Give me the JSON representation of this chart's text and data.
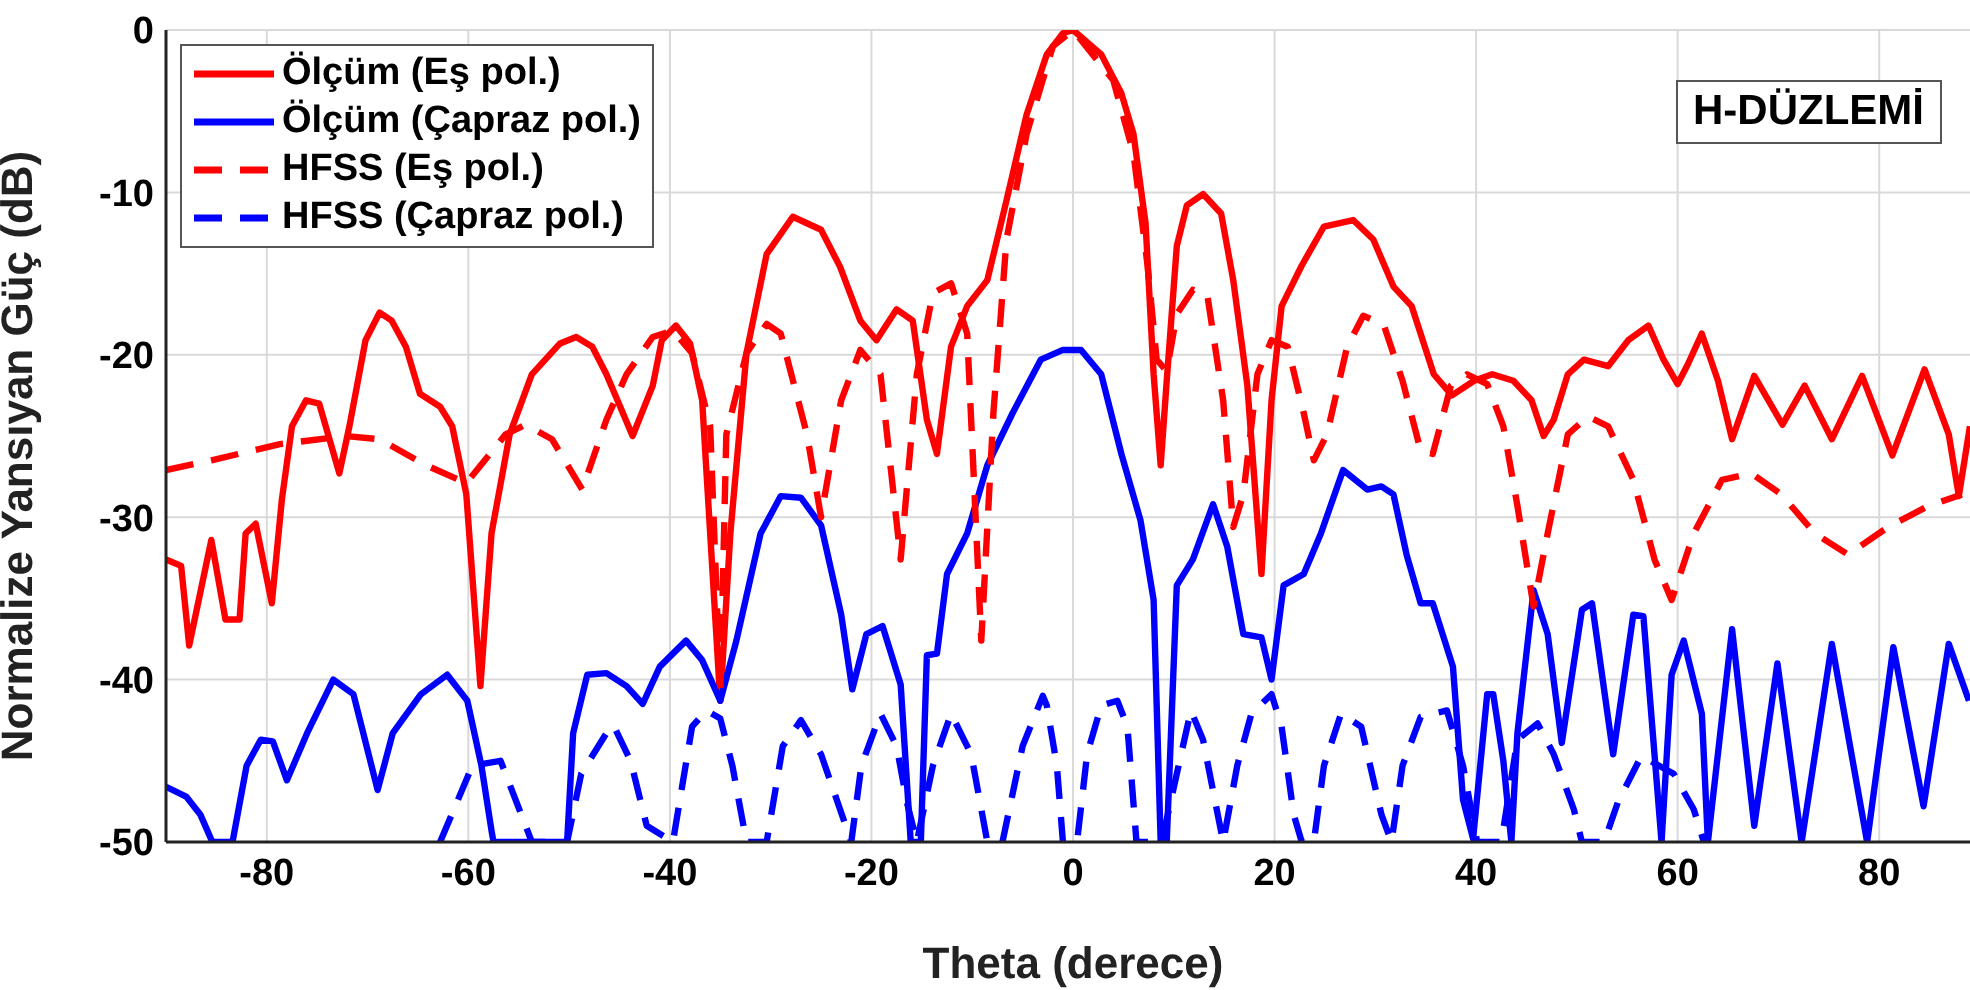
{
  "chart_data": {
    "type": "line",
    "xlabel": "Theta (derece)",
    "ylabel": "Normalize Yansıyan Güç (dB)",
    "xlim": [
      -90,
      90
    ],
    "xticks": [
      -80,
      -60,
      -40,
      -20,
      0,
      20,
      40,
      60,
      80
    ],
    "ylim": [
      -50,
      0
    ],
    "yticks": [
      -50,
      -40,
      -30,
      -20,
      -10,
      0
    ],
    "grid": true,
    "legend": "top left",
    "marker": "none",
    "annotations": [
      "H-DÜZLEMİ"
    ],
    "series": [
      {
        "name": "Ölçüm (Eş pol.)",
        "color": "#ff0000",
        "line_style": "solid",
        "x": [
          -90,
          -88.5,
          -87.7,
          -85.5,
          -84.1,
          -82.7,
          -82.1,
          -81.1,
          -79.5,
          -78.5,
          -77.5,
          -76.1,
          -74.8,
          -72.8,
          -71.8,
          -70.2,
          -68.8,
          -67.6,
          -66.2,
          -64.8,
          -62.8,
          -61.6,
          -60.2,
          -58.8,
          -57.7,
          -55.9,
          -53.7,
          -50.9,
          -49.3,
          -47.7,
          -46.3,
          -43.7,
          -41.7,
          -40.8,
          -39.4,
          -38,
          -36.8,
          -35,
          -34,
          -32.4,
          -30.4,
          -27.8,
          -25,
          -23.1,
          -21.1,
          -19.5,
          -17.5,
          -15.9,
          -14.5,
          -13.5,
          -12.1,
          -10.5,
          -8.5,
          -6.6,
          -4.6,
          -2.6,
          -1,
          0,
          2.8,
          4.8,
          6,
          7.2,
          8,
          8.7,
          9.3,
          10.3,
          11.3,
          12.9,
          14.7,
          15.9,
          17.3,
          18.7,
          19.7,
          20.7,
          22.7,
          24.9,
          27.8,
          29.8,
          31.8,
          33.6,
          35.8,
          37.6,
          39.8,
          41.6,
          43.7,
          45.5,
          46.7,
          47.7,
          49.1,
          50.7,
          53.1,
          55.1,
          57.1,
          58.6,
          60,
          61,
          62.4,
          64,
          65.4,
          67.6,
          70.4,
          72.6,
          75.3,
          78.3,
          81.3,
          84.5,
          86.9,
          87.9,
          89
        ],
        "values": [
          -32.6,
          -33,
          -37.9,
          -31.4,
          -36.3,
          -36.3,
          -31,
          -30.4,
          -35.3,
          -28.9,
          -24.4,
          -22.8,
          -23,
          -27.3,
          -24.4,
          -19.1,
          -17.4,
          -17.9,
          -19.5,
          -22.4,
          -23.2,
          -24.4,
          -28.6,
          -40.4,
          -31,
          -24.9,
          -21.2,
          -19.3,
          -18.9,
          -19.5,
          -21.2,
          -25,
          -21.9,
          -19.1,
          -18.2,
          -19.3,
          -22.8,
          -41.3,
          -31,
          -19.9,
          -13.8,
          -11.5,
          -12.3,
          -14.6,
          -17.9,
          -19.1,
          -17.2,
          -17.9,
          -24,
          -26.1,
          -19.5,
          -17,
          -15.4,
          -10.5,
          -5.2,
          -1.5,
          -0.2,
          0,
          -1.5,
          -3.9,
          -6.4,
          -11.9,
          -21.2,
          -26.8,
          -21.6,
          -13.3,
          -10.8,
          -10.1,
          -11.3,
          -15.4,
          -21.9,
          -33.5,
          -22.8,
          -17,
          -14.5,
          -12.1,
          -11.7,
          -12.9,
          -15.8,
          -17,
          -21.2,
          -22.5,
          -21.6,
          -21.2,
          -21.6,
          -22.8,
          -25,
          -24,
          -21.2,
          -20.3,
          -20.7,
          -19.1,
          -18.2,
          -20.3,
          -21.8,
          -20.6,
          -18.7,
          -21.6,
          -25.2,
          -21.3,
          -24.3,
          -21.9,
          -25.2,
          -21.3,
          -26.2,
          -20.9,
          -24.9,
          -28.7,
          -24.4
        ]
      },
      {
        "name": "Ölçüm (Çapraz pol.)",
        "color": "#0000ff",
        "line_style": "solid",
        "x": [
          -90,
          -88,
          -86.6,
          -85.4,
          -83.4,
          -82,
          -80.6,
          -79.4,
          -78,
          -76,
          -73.4,
          -71.4,
          -69,
          -67.5,
          -64.7,
          -62.1,
          -60.1,
          -58.7,
          -57.7,
          -57.5,
          -50.2,
          -49.6,
          -48.2,
          -46.3,
          -44.3,
          -42.7,
          -41,
          -38.4,
          -36.8,
          -35,
          -33.4,
          -31,
          -29,
          -27,
          -25,
          -23,
          -21.9,
          -20.5,
          -18.9,
          -17.1,
          -16.1,
          -15.1,
          -14.5,
          -13.5,
          -12.5,
          -10.5,
          -8.5,
          -6,
          -3.2,
          -1,
          0.8,
          2.8,
          4.8,
          6.7,
          8,
          8.7,
          9.3,
          10.3,
          11.9,
          13.9,
          15.3,
          16.9,
          18.7,
          19.7,
          20.9,
          22.9,
          24.6,
          26.8,
          29.2,
          30.6,
          31.8,
          33.1,
          34.5,
          35.7,
          37.7,
          38.7,
          39.7,
          41.1,
          41.7,
          42.7,
          43.5,
          44.1,
          45.7,
          47.1,
          48.5,
          50.5,
          51.5,
          53.6,
          55.6,
          56.6,
          58.4,
          59.4,
          60.6,
          62.4,
          63,
          65.4,
          67.6,
          69.9,
          72.3,
          75.3,
          78.8,
          81.4,
          84.4,
          86.9,
          88.9
        ],
        "values": [
          -46.6,
          -47.2,
          -48.3,
          -50,
          -50,
          -45.3,
          -43.7,
          -43.8,
          -46.2,
          -43.3,
          -40,
          -40.9,
          -46.8,
          -43.3,
          -40.9,
          -39.7,
          -41.3,
          -45.3,
          -49.3,
          -50,
          -50,
          -43.3,
          -39.7,
          -39.6,
          -40.4,
          -41.5,
          -39.2,
          -37.6,
          -38.8,
          -41.3,
          -37.6,
          -31,
          -28.7,
          -28.8,
          -30.5,
          -36,
          -40.6,
          -37.2,
          -36.7,
          -40.3,
          -50,
          -50,
          -38.5,
          -38.4,
          -33.5,
          -31,
          -26.8,
          -23.6,
          -20.3,
          -19.7,
          -19.7,
          -21.2,
          -26.1,
          -30.2,
          -35.1,
          -50,
          -50,
          -34.2,
          -32.6,
          -29.2,
          -31.8,
          -37.2,
          -37.4,
          -40,
          -34.2,
          -33.5,
          -31,
          -27.1,
          -28.3,
          -28.1,
          -28.6,
          -32.3,
          -35.3,
          -35.3,
          -39.2,
          -47.4,
          -49.8,
          -40.9,
          -40.9,
          -45,
          -50,
          -43.3,
          -34.5,
          -37.2,
          -43.9,
          -35.7,
          -35.3,
          -44.6,
          -36,
          -36.1,
          -50,
          -39.7,
          -37.6,
          -42.1,
          -50,
          -36.9,
          -49,
          -39,
          -50,
          -37.8,
          -50,
          -38,
          -47.8,
          -37.8,
          -41.3
        ]
      },
      {
        "name": "HFSS (Eş pol.)",
        "color": "#ff0000",
        "line_style": "dashed",
        "x": [
          -90,
          -85.5,
          -78.7,
          -72.2,
          -68.8,
          -64.2,
          -60.2,
          -56.3,
          -54.3,
          -51.7,
          -48.7,
          -46.3,
          -44.3,
          -41.7,
          -39.7,
          -37.8,
          -36,
          -35,
          -34.4,
          -32.4,
          -30.4,
          -29,
          -26.4,
          -25,
          -23,
          -21.1,
          -19.1,
          -17.1,
          -15.5,
          -13.9,
          -12.1,
          -10.5,
          -9.1,
          -7.9,
          -6.6,
          -4.6,
          -2,
          0,
          4,
          6,
          7.4,
          8.3,
          9.3,
          10.3,
          11.9,
          13.3,
          14.9,
          15.9,
          16.9,
          18.3,
          19.7,
          21.3,
          22.9,
          23.9,
          25.2,
          27.2,
          28.8,
          30.8,
          32.7,
          34.5,
          35.7,
          37.5,
          39.1,
          41.1,
          42.7,
          44.1,
          45.7,
          47.1,
          49.1,
          51.1,
          53.1,
          55.6,
          57.7,
          59.4,
          61.6,
          64.4,
          67.3,
          70.3,
          73.6,
          76.9,
          80.9,
          84.9,
          88.2
        ],
        "values": [
          -27.1,
          -26.5,
          -25.5,
          -25,
          -25.2,
          -26.8,
          -27.9,
          -24.9,
          -24.3,
          -25.2,
          -28.3,
          -24,
          -21.2,
          -18.9,
          -18.5,
          -19.9,
          -24.4,
          -40.9,
          -24.9,
          -19.9,
          -18.1,
          -18.7,
          -24.9,
          -30,
          -22.8,
          -19.7,
          -21.2,
          -32.6,
          -21.2,
          -16.2,
          -15.6,
          -18.7,
          -37.6,
          -23.6,
          -12.9,
          -6.4,
          -1,
          0,
          -3.1,
          -7.6,
          -14.5,
          -20.3,
          -21,
          -17.5,
          -16,
          -16.2,
          -22.8,
          -30.6,
          -28.6,
          -21.2,
          -19.1,
          -19.5,
          -23.6,
          -26.5,
          -24.9,
          -19.5,
          -17.6,
          -18.1,
          -21.6,
          -25.9,
          -26.1,
          -21.9,
          -21.2,
          -21.8,
          -24.4,
          -29.3,
          -35.5,
          -31,
          -24.9,
          -23.8,
          -24.4,
          -27.7,
          -32.6,
          -35.1,
          -31,
          -27.7,
          -27.3,
          -28.6,
          -31,
          -32.3,
          -30.6,
          -29.3,
          -28.6
        ]
      },
      {
        "name": "HFSS (Çapraz pol.)",
        "color": "#0000ff",
        "line_style": "dashed",
        "x": [
          -62.8,
          -59.6,
          -56.8,
          -53.7,
          -50.2,
          -48.8,
          -46.3,
          -45.6,
          -43.9,
          -42.3,
          -39.7,
          -37.8,
          -36.4,
          -35,
          -33.8,
          -32.4,
          -30.4,
          -28.8,
          -27,
          -25,
          -22,
          -21,
          -19.1,
          -17.5,
          -16.5,
          -15.5,
          -13.9,
          -12.1,
          -10.1,
          -8.5,
          -7,
          -5,
          -3,
          -2.6,
          -1.6,
          -1,
          0.4,
          1.4,
          2.8,
          4.4,
          5.4,
          6.3,
          8.8,
          10.3,
          11.7,
          12.9,
          14.9,
          16.3,
          17.7,
          19.7,
          20.7,
          21.9,
          22.7,
          23.9,
          24.9,
          26.6,
          28.6,
          30.6,
          31.6,
          32.7,
          34.5,
          37.1,
          38.7,
          40.1,
          42.5,
          44.1,
          46.1,
          47.7,
          49.7,
          50.5,
          52.7,
          54.1,
          56.4,
          59.6,
          61.6,
          62.6
        ],
        "values": [
          -50,
          -45.3,
          -45,
          -50,
          -50,
          -45.8,
          -43.3,
          -42.8,
          -45,
          -49,
          -50,
          -42.9,
          -41.9,
          -42.4,
          -45.3,
          -50,
          -50,
          -44.1,
          -42.5,
          -44.6,
          -50,
          -45.3,
          -42.1,
          -44.1,
          -47.5,
          -50,
          -45.3,
          -42.1,
          -44.6,
          -50,
          -50,
          -44.1,
          -41,
          -41.6,
          -45.3,
          -50,
          -50,
          -44.6,
          -41.6,
          -41.3,
          -42.9,
          -50,
          -50,
          -45.8,
          -41.9,
          -43.7,
          -50,
          -45.3,
          -42.1,
          -40.9,
          -42.9,
          -48.3,
          -50,
          -50,
          -45.3,
          -42.1,
          -42.9,
          -48.3,
          -50,
          -45.3,
          -42.3,
          -41.9,
          -45.3,
          -50,
          -50,
          -43.7,
          -42.7,
          -44.6,
          -48,
          -50,
          -50,
          -47.5,
          -44.7,
          -45.8,
          -48,
          -50
        ]
      }
    ]
  }
}
